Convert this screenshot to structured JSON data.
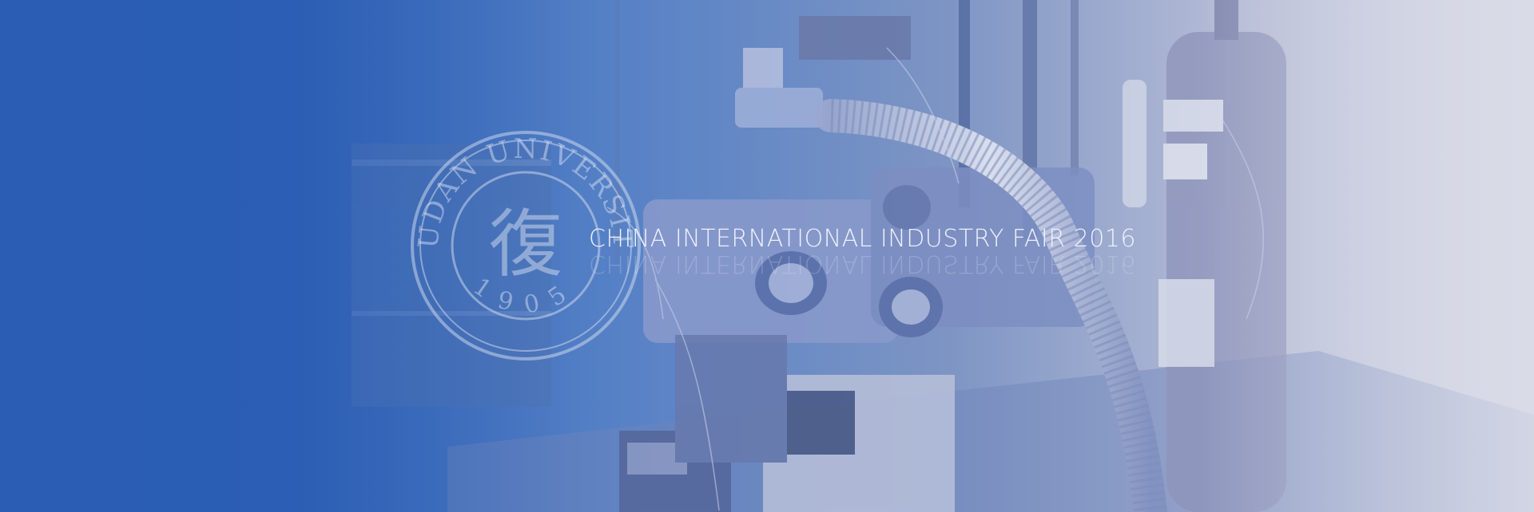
{
  "banner": {
    "title": "CHINA INTERNATIONAL INDUSTRY FAIR 2016",
    "seal": {
      "name_text": "FUDAN UNIVERSITY",
      "year_text": "1905",
      "glyph": "復"
    }
  },
  "colors": {
    "left_blue": "#2a5db3",
    "mid_blue": "#5f86c7",
    "right_light": "#d6d9e6",
    "title_color": "#eef1fb"
  }
}
